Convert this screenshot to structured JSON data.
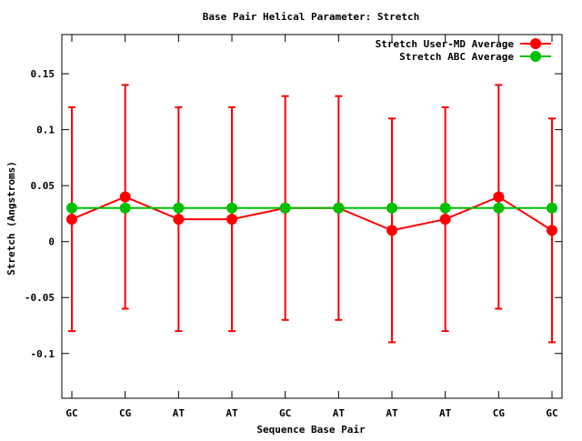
{
  "chart_data": {
    "type": "line",
    "title": "Base Pair Helical Parameter: Stretch",
    "xlabel": "Sequence Base Pair",
    "ylabel": "Stretch (Angstroms)",
    "categories": [
      "GC",
      "CG",
      "AT",
      "AT",
      "GC",
      "AT",
      "AT",
      "AT",
      "CG",
      "GC"
    ],
    "ylim": [
      -0.14,
      0.185
    ],
    "yticks": [
      -0.1,
      -0.05,
      0,
      0.05,
      0.1,
      0.15
    ],
    "ytick_labels": [
      "-0.1",
      "-0.05",
      "0",
      "0.05",
      "0.1",
      "0.15"
    ],
    "legend_position": "top-right",
    "grid": false,
    "series": [
      {
        "name": "Stretch User-MD Average",
        "color": "#ff0000",
        "values": [
          0.02,
          0.04,
          0.02,
          0.02,
          0.03,
          0.03,
          0.01,
          0.02,
          0.04,
          0.01
        ],
        "err_low": [
          -0.08,
          -0.06,
          -0.08,
          -0.08,
          -0.07,
          -0.07,
          -0.09,
          -0.08,
          -0.06,
          -0.09
        ],
        "err_high": [
          0.12,
          0.14,
          0.12,
          0.12,
          0.13,
          0.13,
          0.11,
          0.12,
          0.14,
          0.11
        ]
      },
      {
        "name": "Stretch ABC Average",
        "color": "#00c000",
        "values": [
          0.03,
          0.03,
          0.03,
          0.03,
          0.03,
          0.03,
          0.03,
          0.03,
          0.03,
          0.03
        ]
      }
    ]
  }
}
